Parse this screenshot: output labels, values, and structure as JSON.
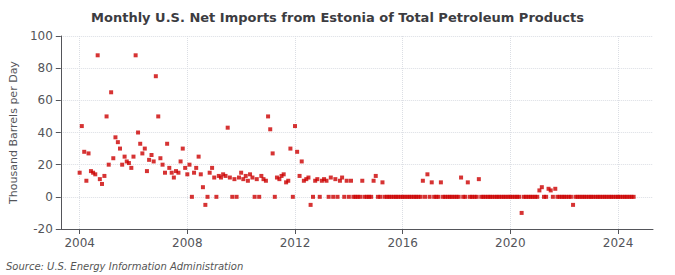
{
  "chart_data": {
    "type": "scatter",
    "title": "Monthly U.S. Net Imports from Estonia of Total Petroleum Products",
    "ylabel": "Thousand Barrels per Day",
    "annotations": [
      "Source: U.S. Energy Information Administration"
    ],
    "color": "#cc0000",
    "marker": "square",
    "grid": true,
    "xlim": [
      2003.3,
      2025.3
    ],
    "xticks": [
      2004,
      2008,
      2012,
      2016,
      2020,
      2024
    ],
    "ylim": [
      -20,
      100
    ],
    "yticks": [
      -20,
      0,
      20,
      40,
      60,
      80,
      100
    ],
    "x": [
      2004.0,
      2004.08,
      2004.17,
      2004.25,
      2004.33,
      2004.42,
      2004.5,
      2004.58,
      2004.67,
      2004.75,
      2004.83,
      2004.92,
      2005.0,
      2005.08,
      2005.17,
      2005.25,
      2005.33,
      2005.42,
      2005.5,
      2005.58,
      2005.67,
      2005.75,
      2005.83,
      2005.92,
      2006.0,
      2006.08,
      2006.17,
      2006.25,
      2006.33,
      2006.42,
      2006.5,
      2006.58,
      2006.67,
      2006.75,
      2006.83,
      2006.92,
      2007.0,
      2007.08,
      2007.17,
      2007.25,
      2007.33,
      2007.42,
      2007.5,
      2007.58,
      2007.67,
      2007.75,
      2007.83,
      2007.92,
      2008.0,
      2008.08,
      2008.17,
      2008.25,
      2008.33,
      2008.42,
      2008.5,
      2008.58,
      2008.67,
      2008.75,
      2008.83,
      2008.92,
      2009.0,
      2009.08,
      2009.17,
      2009.25,
      2009.33,
      2009.42,
      2009.5,
      2009.58,
      2009.67,
      2009.75,
      2009.83,
      2009.92,
      2010.0,
      2010.08,
      2010.17,
      2010.25,
      2010.33,
      2010.42,
      2010.5,
      2010.58,
      2010.67,
      2010.75,
      2010.83,
      2010.92,
      2011.0,
      2011.08,
      2011.17,
      2011.25,
      2011.33,
      2011.42,
      2011.5,
      2011.58,
      2011.67,
      2011.75,
      2011.83,
      2011.92,
      2012.0,
      2012.08,
      2012.17,
      2012.25,
      2012.33,
      2012.42,
      2012.5,
      2012.58,
      2012.67,
      2012.75,
      2012.83,
      2012.92,
      2013.0,
      2013.08,
      2013.17,
      2013.25,
      2013.33,
      2013.42,
      2013.5,
      2013.58,
      2013.67,
      2013.75,
      2013.83,
      2013.92,
      2014.0,
      2014.08,
      2014.17,
      2014.25,
      2014.33,
      2014.42,
      2014.5,
      2014.58,
      2014.67,
      2014.75,
      2014.83,
      2014.92,
      2015.0,
      2015.08,
      2015.17,
      2015.25,
      2015.33,
      2015.42,
      2015.5,
      2015.58,
      2015.67,
      2015.75,
      2015.83,
      2015.92,
      2016.0,
      2016.08,
      2016.17,
      2016.25,
      2016.33,
      2016.42,
      2016.5,
      2016.58,
      2016.67,
      2016.75,
      2016.83,
      2016.92,
      2017.0,
      2017.08,
      2017.17,
      2017.25,
      2017.33,
      2017.42,
      2017.5,
      2017.58,
      2017.67,
      2017.75,
      2017.83,
      2017.92,
      2018.0,
      2018.08,
      2018.17,
      2018.25,
      2018.33,
      2018.42,
      2018.5,
      2018.58,
      2018.67,
      2018.75,
      2018.83,
      2018.92,
      2019.0,
      2019.08,
      2019.17,
      2019.25,
      2019.33,
      2019.42,
      2019.5,
      2019.58,
      2019.67,
      2019.75,
      2019.83,
      2019.92,
      2020.0,
      2020.08,
      2020.17,
      2020.25,
      2020.33,
      2020.42,
      2020.5,
      2020.58,
      2020.67,
      2020.75,
      2020.83,
      2020.92,
      2021.0,
      2021.08,
      2021.17,
      2021.25,
      2021.33,
      2021.42,
      2021.5,
      2021.58,
      2021.67,
      2021.75,
      2021.83,
      2021.92,
      2022.0,
      2022.08,
      2022.17,
      2022.25,
      2022.33,
      2022.42,
      2022.5,
      2022.58,
      2022.67,
      2022.75,
      2022.83,
      2022.92,
      2023.0,
      2023.08,
      2023.17,
      2023.25,
      2023.33,
      2023.42,
      2023.5,
      2023.58,
      2023.67,
      2023.75,
      2023.83,
      2023.92,
      2024.0,
      2024.08,
      2024.17,
      2024.25,
      2024.33,
      2024.42,
      2024.5,
      2024.58
    ],
    "values": [
      15,
      44,
      28,
      10,
      27,
      16,
      15,
      14,
      88,
      11,
      8,
      13,
      50,
      20,
      65,
      24,
      37,
      34,
      30,
      20,
      25,
      22,
      21,
      18,
      25,
      88,
      40,
      33,
      27,
      30,
      16,
      23,
      26,
      22,
      75,
      50,
      24,
      20,
      15,
      33,
      18,
      15,
      12,
      16,
      15,
      22,
      30,
      18,
      14,
      20,
      0,
      15,
      18,
      25,
      14,
      6,
      -5,
      0,
      15,
      18,
      12,
      0,
      13,
      12,
      14,
      13,
      43,
      12,
      0,
      11,
      0,
      12,
      15,
      11,
      13,
      10,
      14,
      12,
      0,
      11,
      0,
      13,
      11,
      10,
      50,
      42,
      27,
      0,
      12,
      11,
      13,
      14,
      9,
      10,
      30,
      0,
      44,
      28,
      13,
      22,
      10,
      11,
      12,
      -5,
      0,
      10,
      11,
      0,
      10,
      11,
      10,
      0,
      12,
      0,
      11,
      0,
      10,
      12,
      0,
      10,
      0,
      10,
      0,
      0,
      0,
      0,
      10,
      0,
      0,
      0,
      0,
      10,
      13,
      0,
      0,
      9,
      0,
      0,
      0,
      0,
      0,
      0,
      0,
      0,
      0,
      0,
      0,
      0,
      0,
      0,
      0,
      0,
      0,
      10,
      0,
      14,
      0,
      9,
      0,
      0,
      0,
      9,
      0,
      0,
      0,
      0,
      0,
      0,
      0,
      0,
      12,
      0,
      0,
      9,
      0,
      0,
      0,
      0,
      11,
      0,
      0,
      0,
      0,
      0,
      0,
      0,
      0,
      0,
      0,
      0,
      0,
      0,
      0,
      0,
      0,
      0,
      0,
      -10,
      0,
      0,
      0,
      0,
      0,
      0,
      0,
      4,
      6,
      0,
      0,
      5,
      4,
      0,
      5,
      0,
      0,
      0,
      0,
      0,
      0,
      0,
      -5,
      0,
      0,
      0,
      0,
      0,
      0,
      0,
      0,
      0,
      0,
      0,
      0,
      0,
      0,
      0,
      0,
      0,
      0,
      0,
      0,
      0,
      0,
      0,
      0,
      0,
      0,
      0
    ]
  }
}
